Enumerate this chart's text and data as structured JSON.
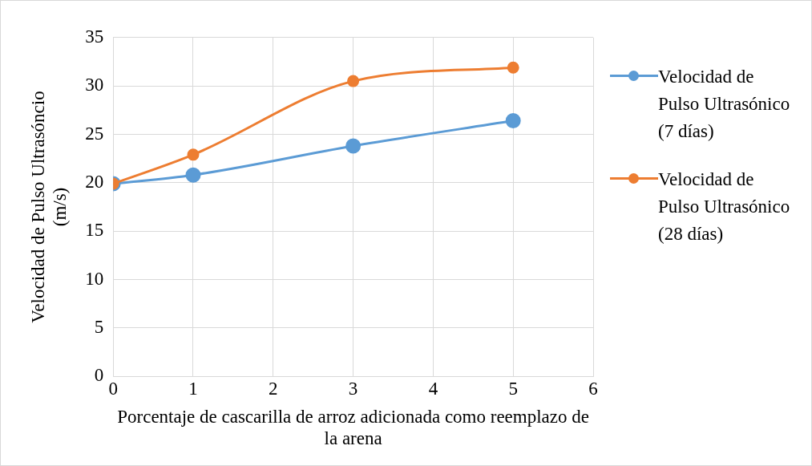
{
  "chart_data": {
    "type": "line",
    "xlabel": "Porcentaje de cascarilla de arroz adicionada como reemplazo de la arena",
    "ylabel": "Velocidad de Pulso Ultrasóncio (m/s)",
    "x": [
      0,
      1,
      3,
      5
    ],
    "series": [
      {
        "name": "Velocidad de Pulso Ultrasónico (7 días)",
        "color": "#5b9bd5",
        "values": [
          19.9,
          20.8,
          23.8,
          26.4
        ]
      },
      {
        "name": "Velocidad de Pulso Ultrasónico (28 días)",
        "color": "#ed7d31",
        "values": [
          19.9,
          22.9,
          30.5,
          31.9
        ]
      }
    ],
    "xlim": [
      0,
      6
    ],
    "xticks": [
      0,
      1,
      2,
      3,
      4,
      5,
      6
    ],
    "ylim": [
      0,
      35
    ],
    "yticks": [
      0,
      5,
      10,
      15,
      20,
      25,
      30,
      35
    ],
    "grid": true,
    "legend": "right",
    "marker": "circle",
    "line_style": "solid"
  }
}
